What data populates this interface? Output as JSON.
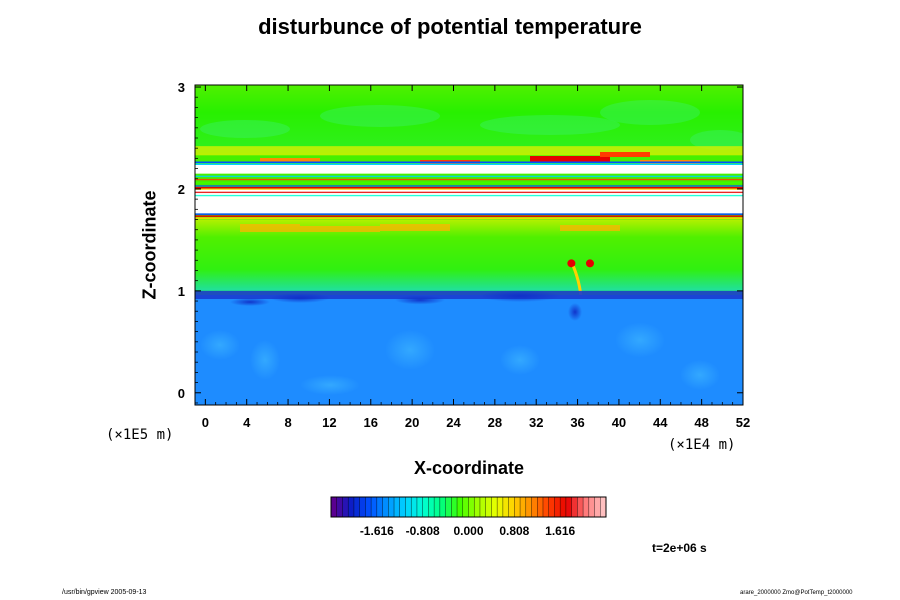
{
  "chart_data": {
    "type": "heatmap",
    "title": "disturbunce of potential temperature",
    "xlabel": "X-coordinate",
    "ylabel": "Z-coordinate",
    "x_scale_label": "(×1E4 m)",
    "y_scale_label": "(×1E5 m)",
    "xlim": [
      -1,
      52
    ],
    "ylim": [
      -0.12,
      3.02
    ],
    "x_ticks": [
      "0",
      "4",
      "8",
      "12",
      "16",
      "20",
      "24",
      "28",
      "32",
      "36",
      "40",
      "44",
      "48",
      "52"
    ],
    "y_ticks": [
      "0",
      "1",
      "2",
      "3"
    ],
    "x_tick_values": [
      0,
      4,
      8,
      12,
      16,
      20,
      24,
      28,
      32,
      36,
      40,
      44,
      48,
      52
    ],
    "y_tick_values": [
      0,
      1,
      2,
      3
    ],
    "colorbar": {
      "min": -2.424,
      "max": 2.424,
      "tick_labels": [
        "-1.616",
        "-0.808",
        "0.000",
        "0.808",
        "1.616"
      ],
      "tick_values": [
        -1.616,
        -0.808,
        0.0,
        0.808,
        1.616
      ],
      "colors": [
        "#5a0090",
        "#0a1ec8",
        "#0050ff",
        "#0096ff",
        "#00d2ff",
        "#00ffd2",
        "#00ff80",
        "#40ff00",
        "#a0ff00",
        "#e6ff00",
        "#ffd200",
        "#ff8c00",
        "#ff3c00",
        "#e60000",
        "#ff7878",
        "#ffc0c0"
      ]
    },
    "regions": [
      {
        "name": "lower-layer",
        "z_from": -0.12,
        "z_to": 0.95,
        "level": -1.0,
        "color": "#1e8cff"
      },
      {
        "name": "lower-boundary",
        "z_from": 0.85,
        "z_to": 1.0,
        "level": -1.9,
        "color": "#1a3cd2"
      },
      {
        "name": "middle-layer",
        "z_from": 1.0,
        "z_to": 1.7,
        "level": 0.3,
        "color": "#3cf000"
      },
      {
        "name": "white-band-lower",
        "z_from": 1.76,
        "z_to": 2.0,
        "level": null,
        "color": "#ffffff"
      },
      {
        "name": "white-band-upper",
        "z_from": 2.15,
        "z_to": 2.24,
        "level": null,
        "color": "#ffffff"
      },
      {
        "name": "upper-layer",
        "z_from": 2.35,
        "z_to": 3.02,
        "level": 0.3,
        "color": "#46f000"
      }
    ],
    "grid": false,
    "legend": "bottom-center"
  },
  "time_label": "t=2e+06 s",
  "footer_left": "/usr/bin/gpview 2005-09-13",
  "footer_right": "arare_2000000 Zmo@PotTemp_t2000000"
}
